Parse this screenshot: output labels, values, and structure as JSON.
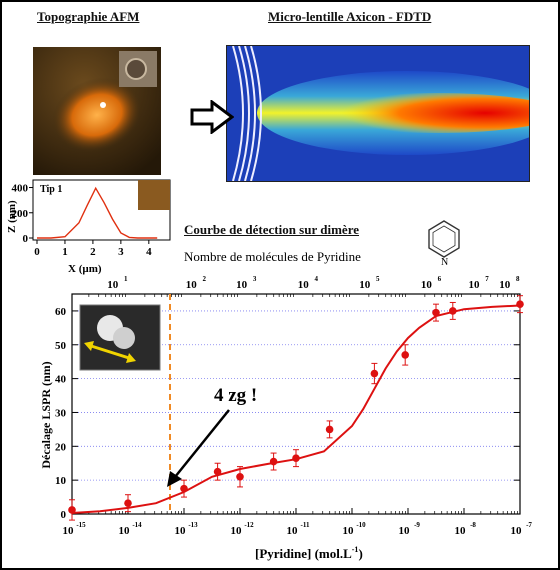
{
  "panels": {
    "afm_title": "Topographie AFM",
    "fdtd_title": "Micro-lentille Axicon - FDTD",
    "detection_title": "Courbe de détection sur dimère",
    "molecules_label": "Nombre de molécules de Pyridine",
    "annotation": "4 zg !"
  },
  "inset_profile": {
    "legend": "Tip 1",
    "xlabel": "X (µm)",
    "ylabel": "Z (nm)",
    "x_ticks": [
      "0",
      "1",
      "2",
      "3",
      "4"
    ],
    "y_ticks": [
      "0",
      "200",
      "400"
    ],
    "x": [
      0,
      0.5,
      1.0,
      1.5,
      1.8,
      2.1,
      2.4,
      2.7,
      3.0,
      3.3,
      3.6,
      4.0,
      4.3
    ],
    "y": [
      0,
      0,
      10,
      120,
      260,
      395,
      280,
      150,
      40,
      5,
      0,
      0,
      0
    ]
  },
  "chart_data": {
    "type": "scatter",
    "xlabel": "[Pyridine] (mol.L",
    "xlabel_sup": "-1",
    "ylabel": "Décalage LSPR (nm)",
    "x_scale": "log",
    "xlim": [
      1e-15,
      1e-07
    ],
    "ylim": [
      0,
      65
    ],
    "grid": true,
    "x_tick_bases": [
      "10",
      "10",
      "10",
      "10",
      "10",
      "10",
      "10",
      "10",
      "10"
    ],
    "x_tick_exps": [
      "-15",
      "-14",
      "-13",
      "-12",
      "-11",
      "-10",
      "-9",
      "-8",
      "-7"
    ],
    "y_ticks": [
      "0",
      "10",
      "20",
      "30",
      "40",
      "50",
      "60"
    ],
    "top_tick_exps": [
      "1",
      "2",
      "3",
      "4",
      "5",
      "6",
      "7",
      "8"
    ],
    "top_tick_positions_log": [
      -14.2,
      -12.8,
      -11.9,
      -10.8,
      -9.7,
      -8.6,
      -7.75,
      -7.2
    ],
    "detection_limit_log": -13.25,
    "points_log10x": [
      -15,
      -14,
      -13,
      -12.4,
      -12,
      -11.4,
      -11,
      -10.4,
      -9.6,
      -9.05,
      -8.5,
      -8.2,
      -7
    ],
    "points_y": [
      1.2,
      3.2,
      7.5,
      12.5,
      11,
      15.5,
      16.5,
      25,
      41.5,
      47,
      59.5,
      60,
      62
    ],
    "errors": [
      3,
      2.5,
      2.5,
      2.5,
      3,
      2.5,
      2.5,
      2.5,
      3,
      3,
      2.5,
      2.5,
      2.5
    ],
    "fit_log10x": [
      -15,
      -14.5,
      -14,
      -13.5,
      -13,
      -12.5,
      -12,
      -11.5,
      -11,
      -10.5,
      -10,
      -9.8,
      -9.6,
      -9.4,
      -9.2,
      -9,
      -8.8,
      -8.5,
      -8,
      -7.5,
      -7
    ],
    "fit_y": [
      0.3,
      0.8,
      1.8,
      3.2,
      6.5,
      11,
      13.3,
      14.8,
      16.2,
      18.5,
      26,
      31,
      37,
      43,
      48,
      52,
      55,
      58.5,
      60.5,
      61.2,
      61.6
    ]
  },
  "colors": {
    "data": "#dd1111",
    "dashed": "#f08a24",
    "grid": "#7b7bef",
    "arrow": "#f0d400"
  }
}
